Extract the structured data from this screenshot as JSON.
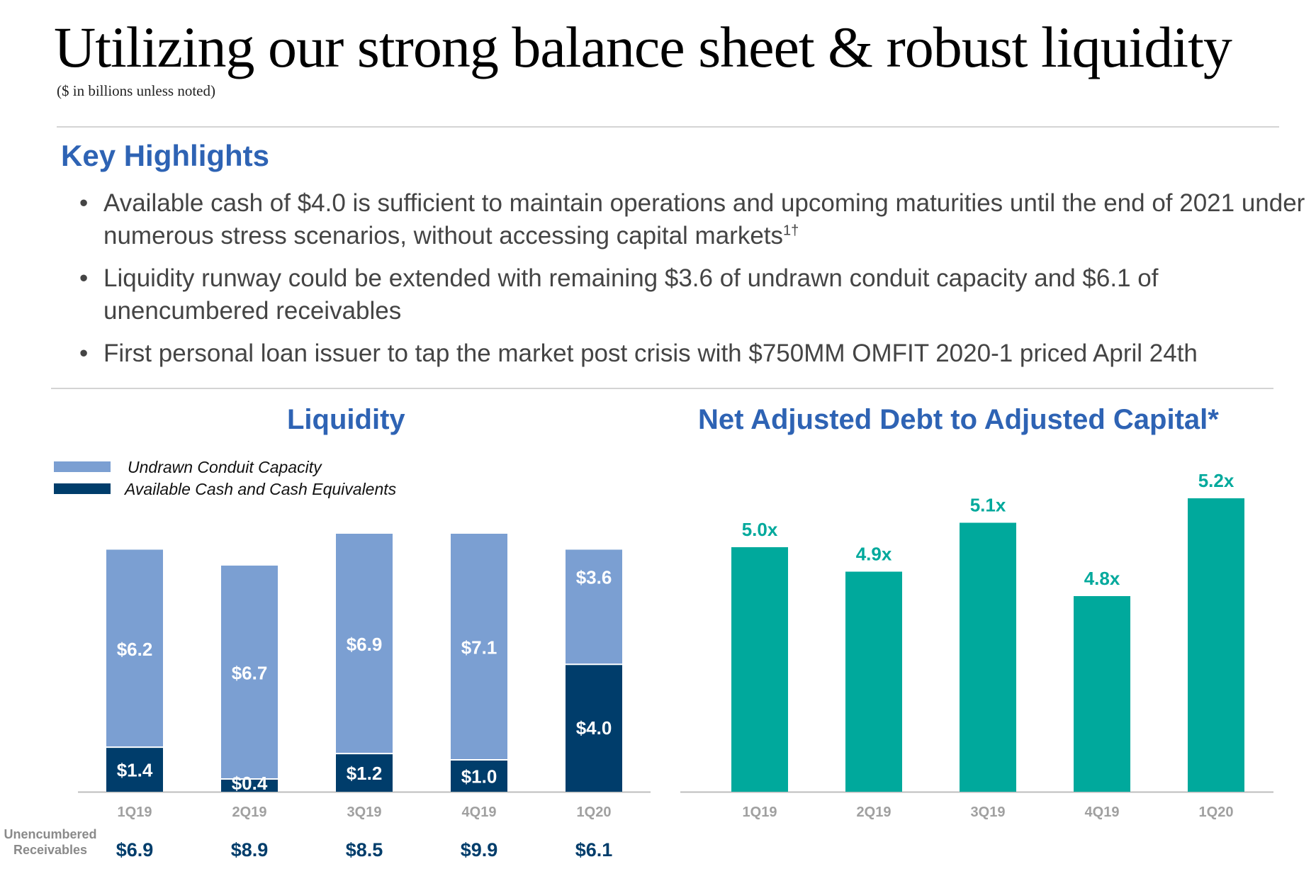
{
  "header": {
    "title": "Utilizing our strong balance sheet & robust liquidity",
    "subtitle": "($ in billions unless noted)"
  },
  "highlights": {
    "heading": "Key Highlights",
    "bullet_symbol": "•",
    "bullets": [
      {
        "text": "Available cash of $4.0 is sufficient to maintain operations and upcoming maturities until the end of 2021 under numerous stress scenarios, without accessing capital markets",
        "sup": "1†"
      },
      {
        "text": "Liquidity runway could be extended with remaining $3.6 of undrawn conduit capacity and $6.1 of unencumbered receivables",
        "sup": ""
      },
      {
        "text": "First personal loan issuer to tap the market post crisis with $750MM OMFIT 2020-1 priced April 24th",
        "sup": ""
      }
    ]
  },
  "colors": {
    "undrawn": "#7b9fd2",
    "cash": "#003d6b",
    "teal": "#00a99c",
    "heading_blue": "#2e63b4",
    "axis_label": "#a0a0a0"
  },
  "unencumbered": {
    "label": "Unencumbered Receivables",
    "values": [
      "$6.9",
      "$8.9",
      "$8.5",
      "$9.9",
      "$6.1"
    ]
  },
  "chart_data": [
    {
      "type": "bar",
      "stacked": true,
      "title": "Liquidity",
      "categories": [
        "1Q19",
        "2Q19",
        "3Q19",
        "4Q19",
        "1Q20"
      ],
      "series": [
        {
          "name": "Available Cash and Cash Equivalents",
          "values": [
            1.4,
            0.4,
            1.2,
            1.0,
            4.0
          ],
          "labels": [
            "$1.4",
            "$0.4",
            "$1.2",
            "$1.0",
            "$4.0"
          ]
        },
        {
          "name": "Undrawn Conduit Capacity",
          "values": [
            6.2,
            6.7,
            6.9,
            7.1,
            3.6
          ],
          "labels": [
            "$6.2",
            "$6.7",
            "$6.9",
            "$7.1",
            "$3.6"
          ]
        }
      ],
      "legend": [
        "Undrawn Conduit Capacity",
        "Available Cash and Cash Equivalents"
      ],
      "legend_position": "top-left",
      "ylim": [
        0,
        8.1
      ]
    },
    {
      "type": "bar",
      "title": "Net Adjusted Debt to Adjusted Capital*",
      "categories": [
        "1Q19",
        "2Q19",
        "3Q19",
        "4Q19",
        "1Q20"
      ],
      "values": [
        5.0,
        4.9,
        5.1,
        4.8,
        5.2
      ],
      "labels": [
        "5.0x",
        "4.9x",
        "5.1x",
        "4.8x",
        "5.2x"
      ],
      "ylim": [
        4.0,
        5.25
      ]
    }
  ]
}
